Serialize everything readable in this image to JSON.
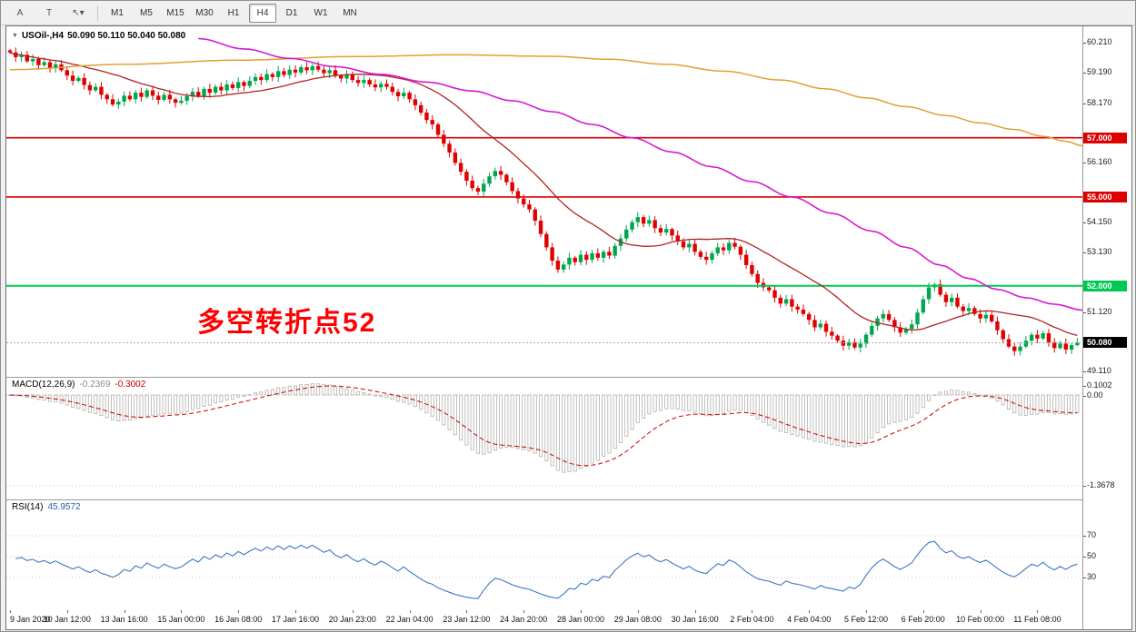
{
  "toolbar": {
    "tool_buttons": [
      "A",
      "T",
      "↖▾"
    ],
    "timeframes": [
      "M1",
      "M5",
      "M15",
      "M30",
      "H1",
      "H4",
      "D1",
      "W1",
      "MN"
    ],
    "active_timeframe": "H4"
  },
  "title": {
    "symbol_period": "USOil-,H4",
    "ohlc": "50.090 50.110 50.040 50.080"
  },
  "annotation": {
    "text": "多空转折点52",
    "color": "#ff0000"
  },
  "price_axis": {
    "labels": [
      60.21,
      59.19,
      58.17,
      56.16,
      54.15,
      53.13,
      51.12,
      49.11
    ],
    "hlines": [
      {
        "price": 57.0,
        "label": "57.000",
        "color": "#dd0000",
        "type": "resistance"
      },
      {
        "price": 55.0,
        "label": "55.000",
        "color": "#dd0000",
        "type": "resistance"
      },
      {
        "price": 52.0,
        "label": "52.000",
        "color": "#00c853",
        "type": "support"
      }
    ],
    "current_price": {
      "value": 50.08,
      "label": "50.080",
      "badge_color": "#000000"
    }
  },
  "chart_data": {
    "type": "candlestick",
    "symbol": "USOil-",
    "period": "H4",
    "open_first": 59.95,
    "bars_per_label": 10,
    "closes": [
      59.88,
      59.72,
      59.8,
      59.58,
      59.66,
      59.45,
      59.55,
      59.35,
      59.48,
      59.28,
      59.1,
      58.92,
      59.02,
      58.78,
      58.6,
      58.72,
      58.45,
      58.3,
      58.12,
      58.22,
      58.42,
      58.3,
      58.52,
      58.38,
      58.6,
      58.42,
      58.28,
      58.45,
      58.3,
      58.18,
      58.25,
      58.4,
      58.55,
      58.42,
      58.65,
      58.52,
      58.72,
      58.6,
      58.8,
      58.68,
      58.88,
      58.75,
      58.92,
      59.05,
      58.95,
      59.15,
      59.05,
      59.25,
      59.12,
      59.3,
      59.2,
      59.38,
      59.28,
      59.42,
      59.3,
      59.18,
      59.28,
      59.1,
      59.0,
      59.12,
      58.95,
      58.85,
      58.95,
      58.8,
      58.7,
      58.82,
      58.72,
      58.55,
      58.4,
      58.52,
      58.3,
      58.1,
      57.85,
      57.6,
      57.45,
      57.1,
      56.8,
      56.5,
      56.15,
      55.85,
      55.55,
      55.3,
      55.18,
      55.45,
      55.7,
      55.88,
      55.75,
      55.5,
      55.2,
      54.95,
      54.75,
      54.58,
      54.2,
      53.75,
      53.3,
      52.85,
      52.55,
      52.72,
      52.95,
      52.8,
      53.05,
      52.88,
      53.1,
      52.95,
      53.15,
      53.02,
      53.35,
      53.6,
      53.9,
      54.15,
      54.32,
      54.1,
      54.22,
      53.95,
      53.8,
      53.92,
      53.7,
      53.5,
      53.3,
      53.42,
      53.15,
      52.98,
      52.88,
      53.1,
      53.3,
      53.2,
      53.45,
      53.32,
      53.05,
      52.7,
      52.4,
      52.1,
      51.95,
      51.85,
      51.6,
      51.4,
      51.55,
      51.3,
      51.2,
      51.05,
      50.85,
      50.6,
      50.72,
      50.45,
      50.32,
      50.15,
      49.98,
      50.1,
      49.92,
      50.05,
      50.35,
      50.65,
      50.9,
      51.05,
      50.85,
      50.6,
      50.42,
      50.55,
      50.7,
      51.1,
      51.55,
      51.95,
      52.05,
      51.7,
      51.45,
      51.6,
      51.3,
      51.15,
      51.25,
      51.05,
      50.9,
      51.02,
      50.8,
      50.5,
      50.2,
      49.95,
      49.8,
      49.95,
      50.15,
      50.35,
      50.22,
      50.4,
      50.1,
      49.9,
      50.05,
      49.85,
      50.0,
      50.08
    ],
    "overlays": {
      "ma_red_period": 20,
      "ma_magenta_points": [
        [
          33,
          60.35
        ],
        [
          41,
          60.0
        ],
        [
          49,
          59.68
        ],
        [
          57,
          59.4
        ],
        [
          65,
          59.14
        ],
        [
          73,
          58.88
        ],
        [
          81,
          58.58
        ],
        [
          88,
          58.25
        ],
        [
          95,
          57.88
        ],
        [
          102,
          57.45
        ],
        [
          109,
          57.0
        ],
        [
          116,
          56.52
        ],
        [
          123,
          56.02
        ],
        [
          130,
          55.52
        ],
        [
          137,
          55.0
        ],
        [
          144,
          54.45
        ],
        [
          151,
          53.85
        ],
        [
          157,
          53.3
        ],
        [
          163,
          52.7
        ],
        [
          168,
          52.25
        ],
        [
          173,
          51.88
        ],
        [
          178,
          51.6
        ],
        [
          183,
          51.38
        ],
        [
          188,
          51.18
        ]
      ],
      "ma_orange_points": [
        [
          0,
          59.3
        ],
        [
          20,
          59.48
        ],
        [
          40,
          59.62
        ],
        [
          60,
          59.74
        ],
        [
          78,
          59.8
        ],
        [
          95,
          59.75
        ],
        [
          105,
          59.65
        ],
        [
          115,
          59.48
        ],
        [
          125,
          59.25
        ],
        [
          135,
          58.95
        ],
        [
          143,
          58.65
        ],
        [
          150,
          58.35
        ],
        [
          157,
          58.05
        ],
        [
          164,
          57.75
        ],
        [
          170,
          57.5
        ],
        [
          176,
          57.28
        ],
        [
          181,
          57.05
        ],
        [
          185,
          56.88
        ],
        [
          188,
          56.72
        ]
      ]
    }
  },
  "macd": {
    "name": "MACD(12,26,9)",
    "main_value": "-0.2369",
    "signal_value": "-0.3002",
    "scale_labels": [
      "0.1002",
      "0.00",
      "-1.3678"
    ],
    "params": [
      12,
      26,
      9
    ]
  },
  "rsi": {
    "name": "RSI(14)",
    "value": "45.9572",
    "period": 14,
    "levels": [
      70,
      50,
      30
    ]
  },
  "time_axis": {
    "labels": [
      "9 Jan 2020",
      "10 Jan 12:00",
      "13 Jan 16:00",
      "15 Jan 00:00",
      "16 Jan 08:00",
      "17 Jan 16:00",
      "20 Jan 23:00",
      "22 Jan 04:00",
      "23 Jan 12:00",
      "24 Jan 20:00",
      "28 Jan 00:00",
      "29 Jan 08:00",
      "30 Jan 16:00",
      "2 Feb 04:00",
      "4 Feb 04:00",
      "5 Feb 12:00",
      "6 Feb 20:00",
      "10 Feb 00:00",
      "11 Feb 08:00"
    ]
  },
  "colors": {
    "candle_up": "#00a651",
    "candle_down": "#e00000",
    "ma_fast": "#b22222",
    "ma_mid": "#d41ad4",
    "ma_slow": "#e0a030",
    "macd_histogram": "#b8b8b8",
    "macd_signal": "#cc0000",
    "rsi_line": "#3a78c3",
    "badge_black": "#000000"
  }
}
